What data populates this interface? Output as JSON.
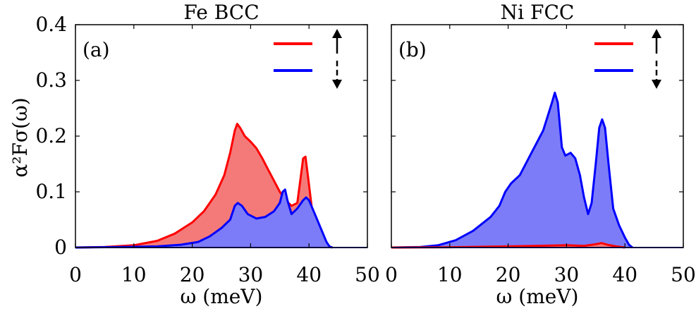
{
  "ylabel": "α²Fσ(ω)",
  "colors": {
    "up": "#ff0000",
    "down": "#0000ff",
    "up_fill": "#f47a7a",
    "down_fill": "#7c7cf8"
  },
  "chart_data": [
    {
      "type": "area",
      "title": "Fe BCC",
      "panel_label": "(a)",
      "xlabel": "ω (meV)",
      "ylabel": "α²Fσ(ω)",
      "xlim": [
        0,
        50
      ],
      "ylim": [
        0,
        0.4
      ],
      "xticks": [
        "0",
        "10",
        "20",
        "30",
        "40",
        "50"
      ],
      "yticks": [
        "0",
        "0.1",
        "0.2",
        "0.3",
        "0.4"
      ],
      "legend": "top-right",
      "series": [
        {
          "spin": "up",
          "color": "#ff0000",
          "points": [
            [
              0,
              0
            ],
            [
              5,
              0.001
            ],
            [
              10,
              0.004
            ],
            [
              14,
              0.012
            ],
            [
              17,
              0.025
            ],
            [
              20,
              0.045
            ],
            [
              22,
              0.065
            ],
            [
              24,
              0.095
            ],
            [
              25.5,
              0.13
            ],
            [
              26.5,
              0.17
            ],
            [
              27.3,
              0.21
            ],
            [
              27.7,
              0.222
            ],
            [
              28.2,
              0.215
            ],
            [
              29,
              0.2
            ],
            [
              30,
              0.19
            ],
            [
              31,
              0.178
            ],
            [
              32,
              0.16
            ],
            [
              33,
              0.14
            ],
            [
              34,
              0.12
            ],
            [
              35,
              0.1
            ],
            [
              36,
              0.085
            ],
            [
              37,
              0.075
            ],
            [
              38,
              0.08
            ],
            [
              38.5,
              0.12
            ],
            [
              39,
              0.16
            ],
            [
              39.4,
              0.163
            ],
            [
              39.8,
              0.13
            ],
            [
              40.5,
              0.07
            ],
            [
              41.5,
              0.035
            ],
            [
              42.5,
              0.012
            ],
            [
              43.3,
              0.002
            ],
            [
              44,
              0
            ]
          ]
        },
        {
          "spin": "down",
          "color": "#0000ff",
          "points": [
            [
              0,
              0
            ],
            [
              8,
              0.001
            ],
            [
              14,
              0.002
            ],
            [
              18,
              0.005
            ],
            [
              21,
              0.01
            ],
            [
              23,
              0.02
            ],
            [
              25,
              0.035
            ],
            [
              26.5,
              0.05
            ],
            [
              27.3,
              0.075
            ],
            [
              27.8,
              0.08
            ],
            [
              28.5,
              0.075
            ],
            [
              29.5,
              0.06
            ],
            [
              31,
              0.052
            ],
            [
              32.5,
              0.055
            ],
            [
              34,
              0.065
            ],
            [
              35,
              0.08
            ],
            [
              35.5,
              0.1
            ],
            [
              35.9,
              0.104
            ],
            [
              36.3,
              0.085
            ],
            [
              37,
              0.06
            ],
            [
              38,
              0.07
            ],
            [
              39,
              0.085
            ],
            [
              39.5,
              0.09
            ],
            [
              40,
              0.085
            ],
            [
              41,
              0.06
            ],
            [
              42,
              0.035
            ],
            [
              43,
              0.01
            ],
            [
              43.5,
              0.002
            ],
            [
              44,
              0
            ]
          ]
        }
      ]
    },
    {
      "type": "area",
      "title": "Ni FCC",
      "panel_label": "(b)",
      "xlabel": "ω (meV)",
      "xlim": [
        0,
        50
      ],
      "ylim": [
        0,
        0.4
      ],
      "xticks": [
        "0",
        "10",
        "20",
        "30",
        "40",
        "50"
      ],
      "legend": "top-right",
      "series": [
        {
          "spin": "down",
          "color": "#0000ff",
          "points": [
            [
              0,
              0
            ],
            [
              5,
              0.001
            ],
            [
              8,
              0.004
            ],
            [
              11,
              0.013
            ],
            [
              14,
              0.03
            ],
            [
              17,
              0.055
            ],
            [
              18.5,
              0.075
            ],
            [
              19.5,
              0.1
            ],
            [
              20.5,
              0.115
            ],
            [
              22,
              0.13
            ],
            [
              24,
              0.17
            ],
            [
              26,
              0.21
            ],
            [
              27.5,
              0.26
            ],
            [
              28,
              0.278
            ],
            [
              28.5,
              0.26
            ],
            [
              29.2,
              0.18
            ],
            [
              29.8,
              0.165
            ],
            [
              30.7,
              0.17
            ],
            [
              31.5,
              0.16
            ],
            [
              32.3,
              0.13
            ],
            [
              33,
              0.09
            ],
            [
              33.7,
              0.06
            ],
            [
              34.3,
              0.08
            ],
            [
              35,
              0.15
            ],
            [
              35.6,
              0.215
            ],
            [
              36.1,
              0.23
            ],
            [
              36.6,
              0.215
            ],
            [
              37.2,
              0.15
            ],
            [
              38,
              0.07
            ],
            [
              39,
              0.04
            ],
            [
              40,
              0.018
            ],
            [
              40.7,
              0.005
            ],
            [
              41.3,
              0
            ]
          ]
        },
        {
          "spin": "up",
          "color": "#ff0000",
          "points": [
            [
              0,
              0
            ],
            [
              10,
              0.0005
            ],
            [
              20,
              0.002
            ],
            [
              25,
              0.003
            ],
            [
              30,
              0.004
            ],
            [
              33,
              0.003
            ],
            [
              35,
              0.006
            ],
            [
              36,
              0.008
            ],
            [
              37,
              0.005
            ],
            [
              38.5,
              0.002
            ],
            [
              40,
              0
            ]
          ]
        }
      ]
    }
  ]
}
